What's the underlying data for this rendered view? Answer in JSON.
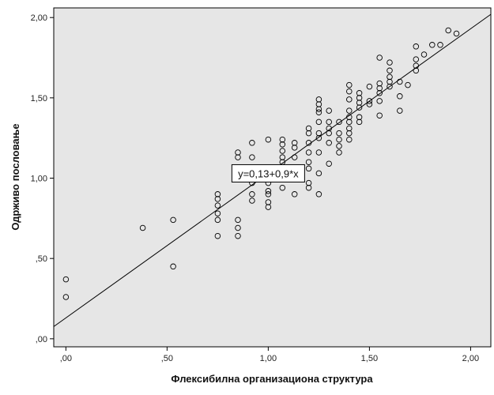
{
  "chart_data": {
    "type": "scatter",
    "xlabel": "Флексибилна организациона структура",
    "ylabel": "Одрживо пословање",
    "xlim": [
      -0.06,
      2.1
    ],
    "ylim": [
      -0.05,
      2.06
    ],
    "x_ticks": [
      0,
      0.5,
      1,
      1.5,
      2
    ],
    "x_tick_labels": [
      ",00",
      ",50",
      "1,00",
      "1,50",
      "2,00"
    ],
    "y_ticks": [
      0,
      0.5,
      1,
      1.5,
      2
    ],
    "y_tick_labels": [
      ",00",
      ",50",
      "1,00",
      "1,50",
      "2,00"
    ],
    "grid": false,
    "plot_background": "#e6e6e6",
    "fit_line": {
      "intercept": 0.13,
      "slope": 0.9,
      "label": "y=0,13+0,9*x",
      "label_at": [
        1.0,
        1.02
      ]
    },
    "points": [
      [
        0.0,
        0.37
      ],
      [
        0.0,
        0.26
      ],
      [
        0.38,
        0.69
      ],
      [
        0.53,
        0.74
      ],
      [
        0.53,
        0.45
      ],
      [
        0.75,
        0.9
      ],
      [
        0.75,
        0.87
      ],
      [
        0.75,
        0.83
      ],
      [
        0.75,
        0.78
      ],
      [
        0.75,
        0.74
      ],
      [
        0.75,
        0.64
      ],
      [
        0.85,
        1.16
      ],
      [
        0.85,
        1.13
      ],
      [
        0.85,
        1.03
      ],
      [
        0.85,
        0.74
      ],
      [
        0.85,
        0.69
      ],
      [
        0.85,
        0.64
      ],
      [
        0.92,
        1.22
      ],
      [
        0.92,
        1.13
      ],
      [
        0.92,
        1.03
      ],
      [
        0.92,
        0.97
      ],
      [
        0.92,
        0.9
      ],
      [
        0.92,
        0.86
      ],
      [
        1.0,
        1.24
      ],
      [
        1.0,
        1.06
      ],
      [
        1.0,
        1.03
      ],
      [
        1.0,
        0.97
      ],
      [
        1.0,
        0.92
      ],
      [
        1.0,
        0.9
      ],
      [
        1.0,
        0.85
      ],
      [
        1.0,
        0.82
      ],
      [
        1.07,
        1.24
      ],
      [
        1.07,
        1.21
      ],
      [
        1.07,
        1.17
      ],
      [
        1.07,
        1.13
      ],
      [
        1.07,
        1.1
      ],
      [
        1.07,
        1.06
      ],
      [
        1.07,
        1.03
      ],
      [
        1.07,
        0.94
      ],
      [
        1.13,
        1.22
      ],
      [
        1.13,
        1.19
      ],
      [
        1.13,
        1.13
      ],
      [
        1.13,
        1.06
      ],
      [
        1.13,
        0.9
      ],
      [
        1.2,
        1.31
      ],
      [
        1.2,
        1.28
      ],
      [
        1.2,
        1.22
      ],
      [
        1.2,
        1.16
      ],
      [
        1.2,
        1.1
      ],
      [
        1.2,
        1.06
      ],
      [
        1.2,
        0.97
      ],
      [
        1.2,
        0.94
      ],
      [
        1.25,
        1.49
      ],
      [
        1.25,
        1.46
      ],
      [
        1.25,
        1.43
      ],
      [
        1.25,
        1.41
      ],
      [
        1.25,
        1.35
      ],
      [
        1.25,
        1.28
      ],
      [
        1.25,
        1.25
      ],
      [
        1.25,
        1.16
      ],
      [
        1.25,
        1.03
      ],
      [
        1.25,
        0.9
      ],
      [
        1.3,
        1.42
      ],
      [
        1.3,
        1.35
      ],
      [
        1.3,
        1.31
      ],
      [
        1.3,
        1.28
      ],
      [
        1.3,
        1.22
      ],
      [
        1.3,
        1.09
      ],
      [
        1.35,
        1.35
      ],
      [
        1.35,
        1.28
      ],
      [
        1.35,
        1.24
      ],
      [
        1.35,
        1.2
      ],
      [
        1.35,
        1.16
      ],
      [
        1.4,
        1.58
      ],
      [
        1.4,
        1.54
      ],
      [
        1.4,
        1.49
      ],
      [
        1.4,
        1.42
      ],
      [
        1.4,
        1.38
      ],
      [
        1.4,
        1.35
      ],
      [
        1.4,
        1.31
      ],
      [
        1.4,
        1.28
      ],
      [
        1.4,
        1.24
      ],
      [
        1.45,
        1.53
      ],
      [
        1.45,
        1.5
      ],
      [
        1.45,
        1.47
      ],
      [
        1.45,
        1.44
      ],
      [
        1.45,
        1.38
      ],
      [
        1.45,
        1.35
      ],
      [
        1.5,
        1.57
      ],
      [
        1.5,
        1.48
      ],
      [
        1.5,
        1.46
      ],
      [
        1.55,
        1.75
      ],
      [
        1.55,
        1.59
      ],
      [
        1.55,
        1.56
      ],
      [
        1.55,
        1.53
      ],
      [
        1.55,
        1.48
      ],
      [
        1.55,
        1.39
      ],
      [
        1.6,
        1.72
      ],
      [
        1.6,
        1.67
      ],
      [
        1.6,
        1.63
      ],
      [
        1.6,
        1.6
      ],
      [
        1.6,
        1.57
      ],
      [
        1.65,
        1.6
      ],
      [
        1.65,
        1.51
      ],
      [
        1.65,
        1.42
      ],
      [
        1.69,
        1.58
      ],
      [
        1.73,
        1.82
      ],
      [
        1.73,
        1.74
      ],
      [
        1.73,
        1.7
      ],
      [
        1.73,
        1.67
      ],
      [
        1.77,
        1.77
      ],
      [
        1.81,
        1.83
      ],
      [
        1.85,
        1.83
      ],
      [
        1.89,
        1.92
      ],
      [
        1.93,
        1.9
      ]
    ]
  }
}
